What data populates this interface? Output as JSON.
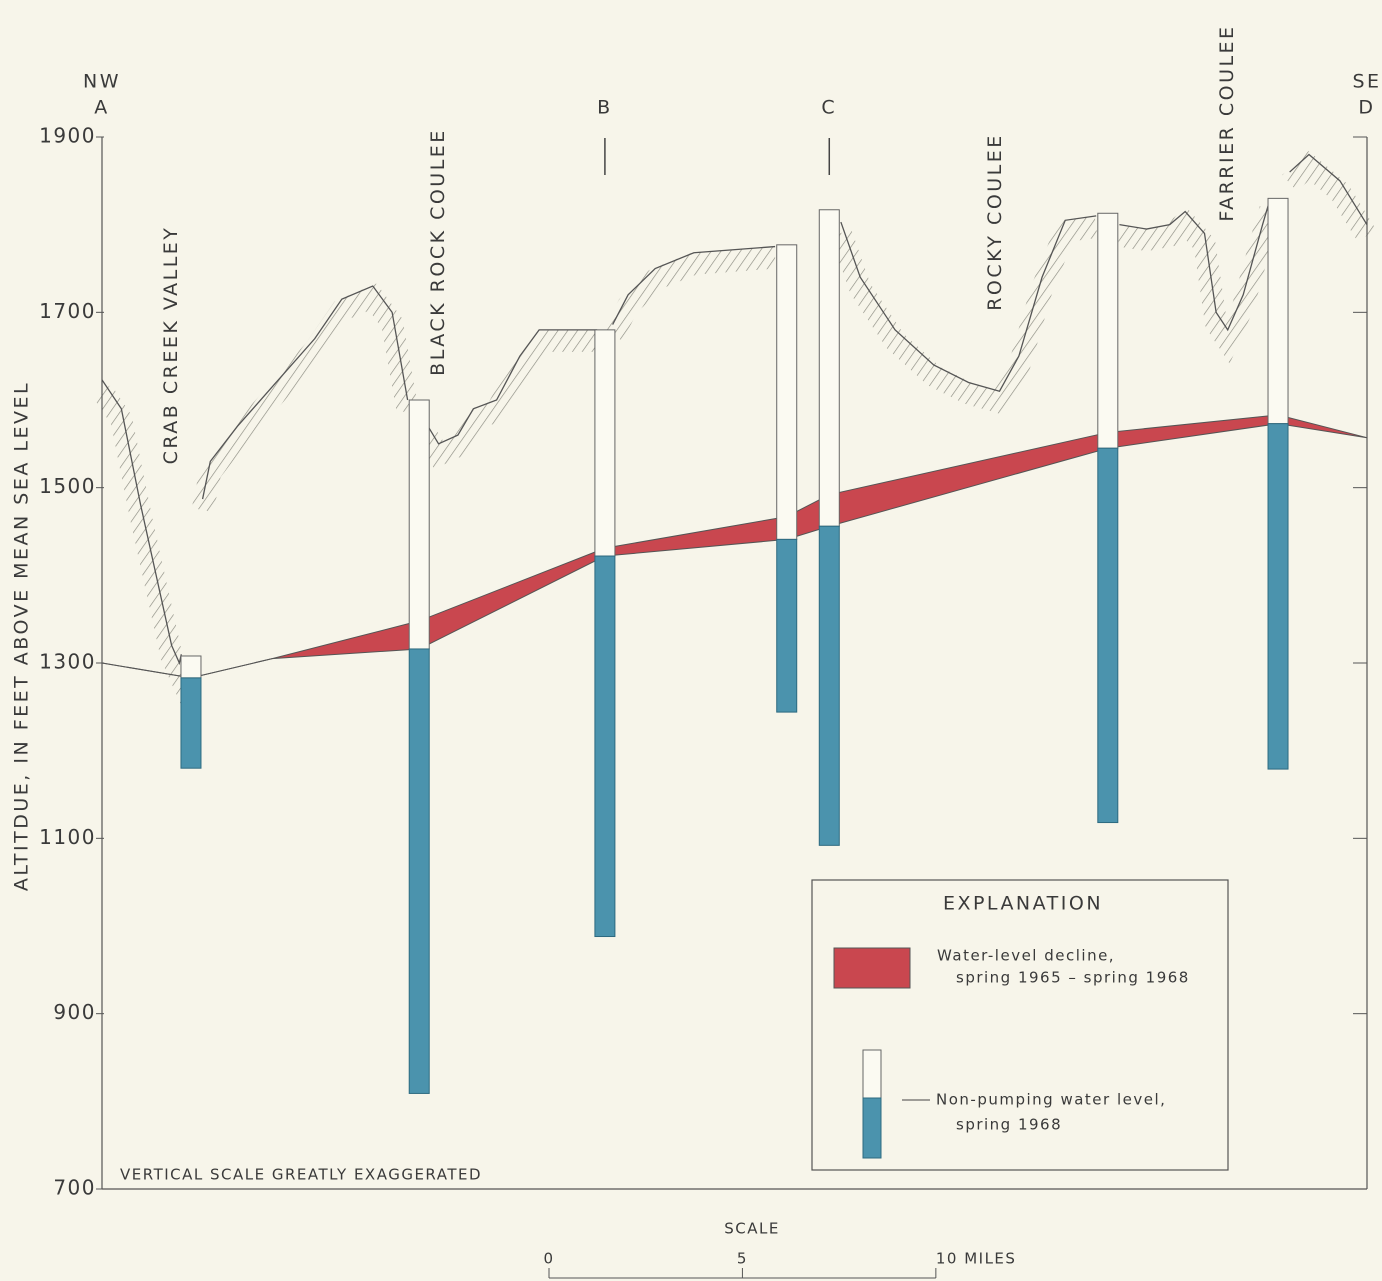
{
  "chart_data": {
    "type": "cross-section",
    "y_label": "ALTITDUE, IN FEET ABOVE MEAN SEA LEVEL",
    "ylim": [
      700,
      1900
    ],
    "yticks": [
      700,
      900,
      1100,
      1300,
      1500,
      1700,
      1900
    ],
    "xlim": [
      0,
      32.7
    ],
    "ends": [
      {
        "direction": "NW",
        "label": "A",
        "x": 0
      },
      {
        "direction": "SE",
        "label": "D",
        "x": 32.7
      }
    ],
    "section_points": [
      {
        "label": "B",
        "x": 13.0
      },
      {
        "label": "C",
        "x": 18.8
      }
    ],
    "features": [
      {
        "label": "CRAB CREEK VALLEY",
        "x": 1.8
      },
      {
        "label": "BLACK ROCK COULEE",
        "x": 8.7
      },
      {
        "label": "ROCKY COULEE",
        "x": 23.1
      },
      {
        "label": "FARRIER COULEE",
        "x": 29.1
      }
    ],
    "land_surface": {
      "x": [
        0,
        0.5,
        1.0,
        1.5,
        1.8,
        2.0,
        2.05,
        null,
        2.6,
        2.8,
        3.5,
        4.5,
        5.5,
        6.2,
        7.0,
        7.5,
        7.9,
        null,
        8.4,
        8.7,
        9.2,
        9.6,
        10.2,
        10.8,
        11.3,
        12.8,
        null,
        13.2,
        13.6,
        14.3,
        15.3,
        17.4,
        null,
        19.1,
        19.6,
        20.5,
        21.5,
        22.4,
        23.2,
        23.7,
        24.3,
        24.9,
        25.7,
        null,
        26.3,
        27.0,
        27.6,
        28.0,
        28.5,
        28.8,
        29.1,
        29.5,
        30.0,
        30.2,
        null,
        30.7,
        31.2,
        32.0,
        32.7
      ],
      "values": [
        1623,
        1590,
        1480,
        1380,
        1320,
        1300,
        1310,
        null,
        1487,
        1530,
        1570,
        1620,
        1670,
        1715,
        1730,
        1700,
        1600,
        null,
        1572,
        1550,
        1560,
        1590,
        1600,
        1650,
        1680,
        1680,
        null,
        1686,
        1720,
        1750,
        1768,
        1775,
        null,
        1803,
        1740,
        1680,
        1640,
        1620,
        1610,
        1650,
        1740,
        1805,
        1810,
        null,
        1800,
        1795,
        1800,
        1815,
        1790,
        1700,
        1680,
        1720,
        1800,
        1830,
        null,
        1860,
        1880,
        1850,
        1800
      ]
    },
    "water_level": {
      "x": [
        0,
        2.3,
        4.4,
        8.2,
        13.0,
        17.7,
        18.8,
        26.0,
        30.4,
        32.7
      ],
      "spring_1965": [
        1300,
        1283,
        1305,
        1348,
        1431,
        1467,
        1492,
        1563,
        1583,
        1557
      ],
      "spring_1968": [
        1300,
        1283,
        1305,
        1316,
        1422,
        1441,
        1456,
        1545,
        1573,
        1557
      ]
    },
    "wells": [
      {
        "x": 2.3,
        "top": 1308,
        "bottom": 1180
      },
      {
        "x": 8.2,
        "top": 1600,
        "bottom": 809
      },
      {
        "x": 13.0,
        "top": 1680,
        "bottom": 988
      },
      {
        "x": 17.7,
        "top": 1777,
        "bottom": 1244
      },
      {
        "x": 18.8,
        "top": 1817,
        "bottom": 1092
      },
      {
        "x": 26.0,
        "top": 1813,
        "bottom": 1118
      },
      {
        "x": 30.4,
        "top": 1830,
        "bottom": 1179
      }
    ],
    "decline_color": "#c9474f",
    "well_color": "#4b93ad",
    "note": "VERTICAL SCALE GREATLY EXAGGERATED",
    "legend": {
      "title": "EXPLANATION",
      "items": [
        [
          "Water-level decline,",
          "spring 1965 – spring 1968"
        ],
        [
          "Non-pumping water level,",
          "spring 1968"
        ]
      ]
    },
    "scale": {
      "title": "SCALE",
      "ticks": [
        0,
        5,
        {
          "value": 10,
          "label": "10 MILES"
        }
      ]
    }
  }
}
